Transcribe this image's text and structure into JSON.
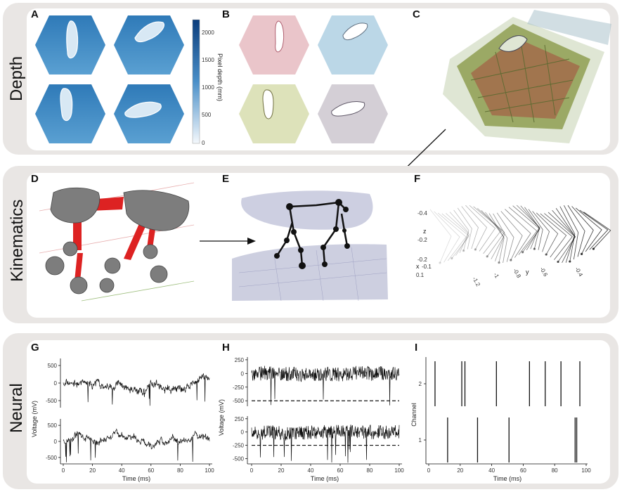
{
  "sections": [
    {
      "label": "Depth"
    },
    {
      "label": "Kinematics"
    },
    {
      "label": "Neural"
    }
  ],
  "panels": {
    "A": {
      "letter": "A",
      "colorbar_label": "Pixel depth (mm)",
      "colorbar_ticks": [
        "2000",
        "1500",
        "1000",
        "500",
        "0"
      ]
    },
    "B": {
      "letter": "B"
    },
    "C": {
      "letter": "C"
    },
    "D": {
      "letter": "D"
    },
    "E": {
      "letter": "E"
    },
    "F": {
      "letter": "F",
      "axis_z_label": "z",
      "axis_x_label": "x",
      "axis_y_label": "y",
      "z_ticks": [
        "-0.4",
        "-0.2",
        "-0.2"
      ],
      "x_ticks": [
        "-0.1",
        "0.1"
      ],
      "y_ticks": [
        "-1.2",
        "-1",
        "-0.8",
        "-0.6",
        "-0.4"
      ]
    },
    "G": {
      "letter": "G"
    },
    "H": {
      "letter": "H"
    },
    "I": {
      "letter": "I"
    }
  },
  "colors": {
    "section_bg": "#e9e6e4",
    "depth_blue": "#4a8fc8",
    "limb_red": "#dd2222",
    "trace": "#111111"
  },
  "chart_data": [
    {
      "type": "line",
      "panel": "G",
      "title": "",
      "xlabel": "Time (ms)",
      "ylabel": "Voltage (mV)",
      "xlim": [
        0,
        100
      ],
      "x_ticks": [
        "0",
        "20",
        "40",
        "60",
        "80",
        "100"
      ],
      "series": [
        {
          "name": "trace-top",
          "ylim": [
            -700,
            700
          ],
          "y_ticks": [
            "500",
            "0",
            "-500"
          ]
        },
        {
          "name": "trace-bottom",
          "ylim": [
            -700,
            700
          ],
          "y_ticks": [
            "500",
            "0",
            "-500"
          ]
        }
      ]
    },
    {
      "type": "line",
      "panel": "H",
      "title": "",
      "xlabel": "Time (ms)",
      "ylabel": "Voltage (mV)",
      "xlim": [
        0,
        100
      ],
      "x_ticks": [
        "0",
        "20",
        "40",
        "60",
        "80",
        "100"
      ],
      "series": [
        {
          "name": "trace-top",
          "ylim": [
            -600,
            300
          ],
          "y_ticks": [
            "250",
            "0",
            "-250",
            "-500"
          ],
          "threshold": -500
        },
        {
          "name": "trace-bottom",
          "ylim": [
            -600,
            300
          ],
          "y_ticks": [
            "250",
            "0",
            "-250",
            "-500"
          ],
          "threshold": -250
        }
      ]
    },
    {
      "type": "scatter",
      "panel": "I",
      "title": "",
      "xlabel": "Time (ms)",
      "ylabel": "Channel",
      "xlim": [
        0,
        100
      ],
      "x_ticks": [
        "0",
        "20",
        "40",
        "60",
        "80",
        "100"
      ],
      "y_ticks": [
        "2",
        "1"
      ],
      "spikes": [
        {
          "channel": 2,
          "times": [
            4,
            21,
            23,
            43,
            64,
            74,
            84,
            96
          ]
        },
        {
          "channel": 1,
          "times": [
            12,
            31,
            51,
            93,
            94
          ]
        }
      ]
    }
  ]
}
